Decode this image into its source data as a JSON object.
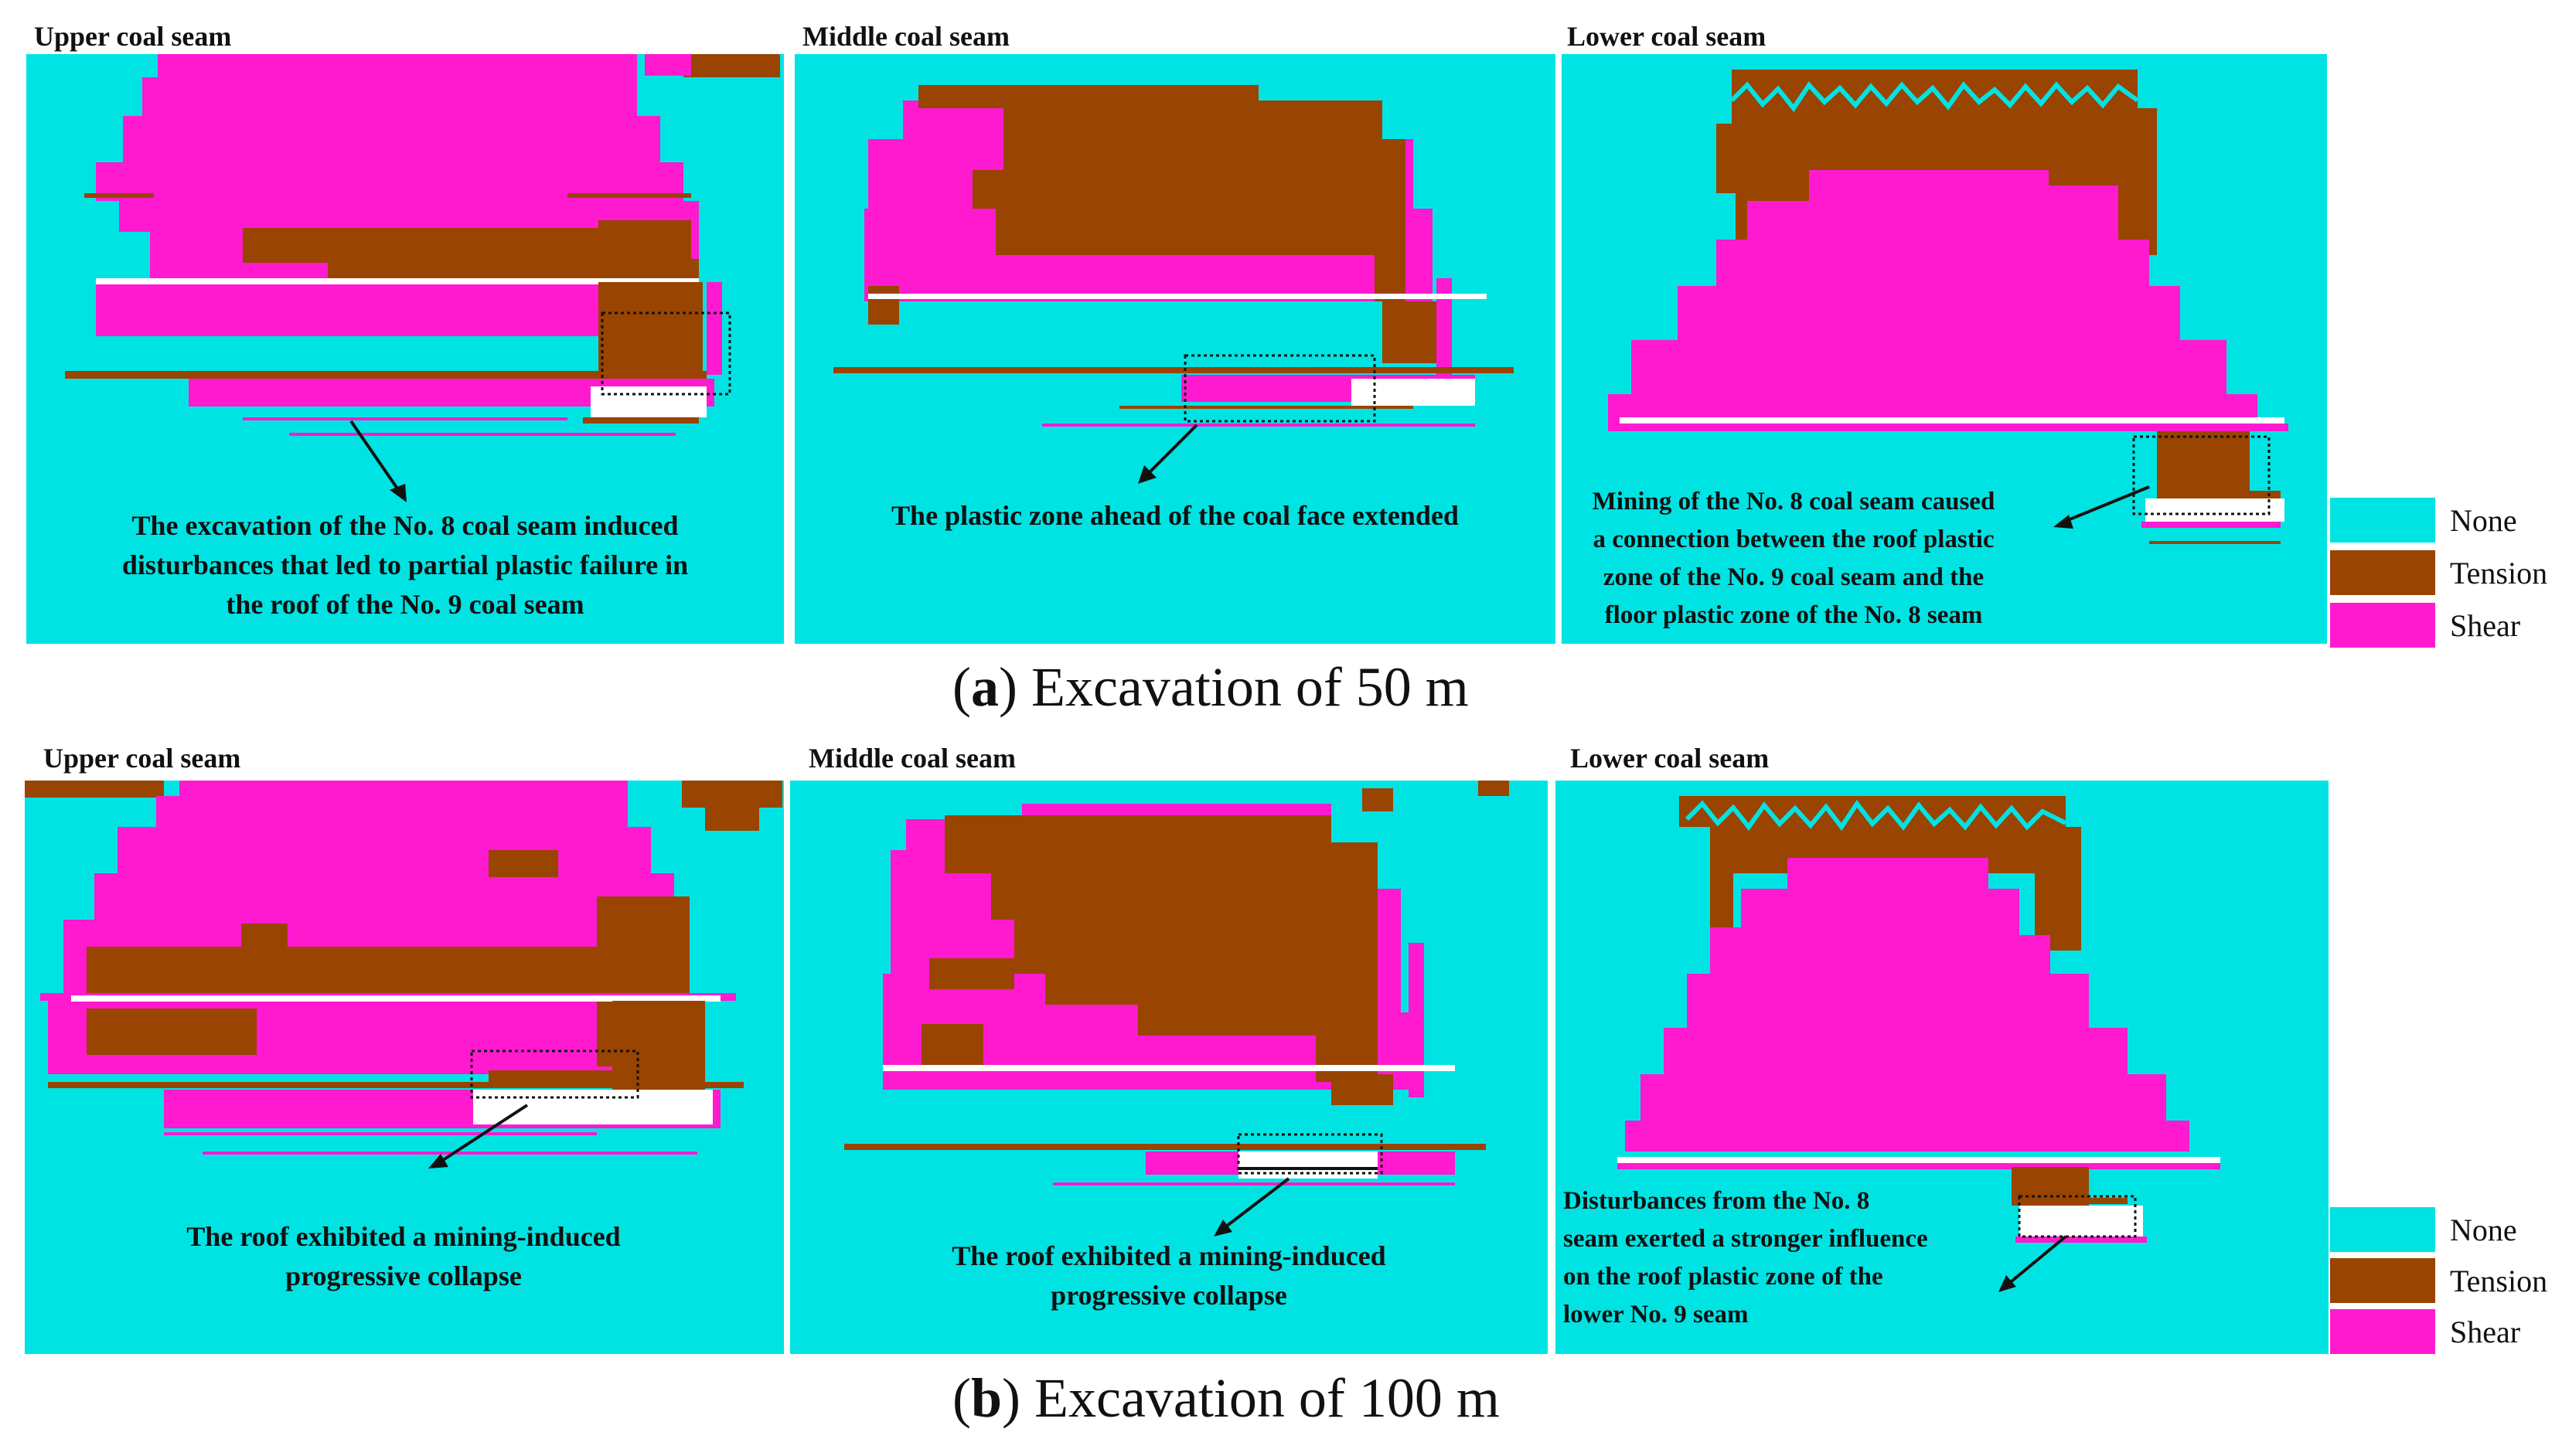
{
  "colors": {
    "none": "#00e3e3",
    "tension": "#994400",
    "shear": "#ff1ad0",
    "excavation": "#ffffff"
  },
  "legend": [
    {
      "label": "None",
      "color": "#00e3e3"
    },
    {
      "label": "Tension",
      "color": "#994400"
    },
    {
      "label": "Shear",
      "color": "#ff1ad0"
    }
  ],
  "row_a": {
    "caption_letter": "a",
    "caption_text": " Excavation of 50 m",
    "panels": [
      {
        "title": "Upper coal seam",
        "note": [
          "The excavation of the No. 8 coal seam induced",
          "disturbances that led to partial plastic failure in",
          "the roof of the No. 9 coal seam"
        ]
      },
      {
        "title": "Middle coal seam",
        "note": [
          "The plastic zone ahead of the coal face extended"
        ]
      },
      {
        "title": "Lower coal seam",
        "note": [
          "Mining of the No. 8 coal seam caused",
          "a connection between the roof plastic",
          "zone of the No. 9 coal seam and the",
          "floor plastic zone of the No. 8 seam"
        ]
      }
    ]
  },
  "row_b": {
    "caption_letter": "b",
    "caption_text": " Excavation of 100 m",
    "panels": [
      {
        "title": "Upper coal seam",
        "note": [
          "The roof exhibited a mining-induced",
          "progressive collapse"
        ]
      },
      {
        "title": "Middle coal seam",
        "note": [
          "The roof exhibited a mining-induced",
          "progressive collapse"
        ]
      },
      {
        "title": "Lower coal seam",
        "note": [
          "Disturbances from the No. 8",
          "seam exerted a stronger influence",
          "on the roof plastic zone of the",
          "lower No. 9 seam"
        ]
      }
    ]
  }
}
